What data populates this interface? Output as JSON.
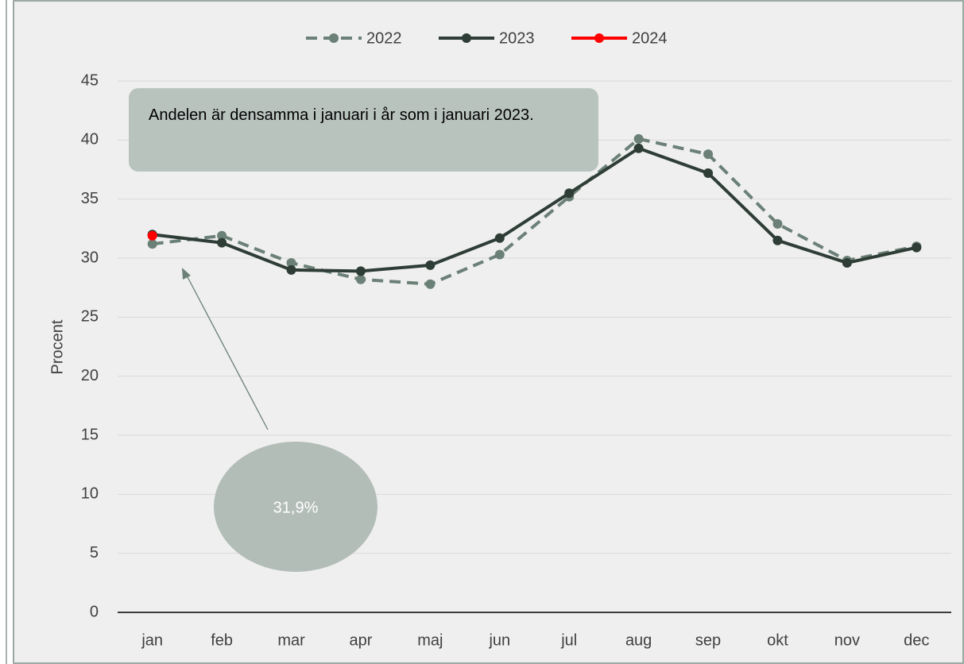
{
  "chart_data": {
    "type": "line",
    "categories": [
      "jan",
      "feb",
      "mar",
      "apr",
      "maj",
      "jun",
      "jul",
      "aug",
      "sep",
      "okt",
      "nov",
      "dec"
    ],
    "series": [
      {
        "name": "2022",
        "color": "#6b8077",
        "dashed": true,
        "values": [
          31.2,
          31.9,
          29.6,
          28.2,
          27.8,
          30.3,
          35.2,
          40.1,
          38.8,
          32.9,
          29.8,
          31.0
        ]
      },
      {
        "name": "2023",
        "color": "#2e3d36",
        "dashed": false,
        "values": [
          32.0,
          31.3,
          29.0,
          28.9,
          29.4,
          31.7,
          35.5,
          39.3,
          37.2,
          31.5,
          29.6,
          30.9
        ]
      },
      {
        "name": "2024",
        "color": "#ff0000",
        "dashed": false,
        "values": [
          31.9,
          null,
          null,
          null,
          null,
          null,
          null,
          null,
          null,
          null,
          null,
          null
        ]
      }
    ],
    "y_label": "Procent",
    "ylim": [
      0,
      45
    ],
    "yticks": [
      0,
      5,
      10,
      15,
      20,
      25,
      30,
      35,
      40,
      45
    ],
    "grid": true,
    "legend": "top",
    "annotations": [
      "Andelen är densamma i januari i år som i januari 2023.",
      "31,9%"
    ]
  }
}
